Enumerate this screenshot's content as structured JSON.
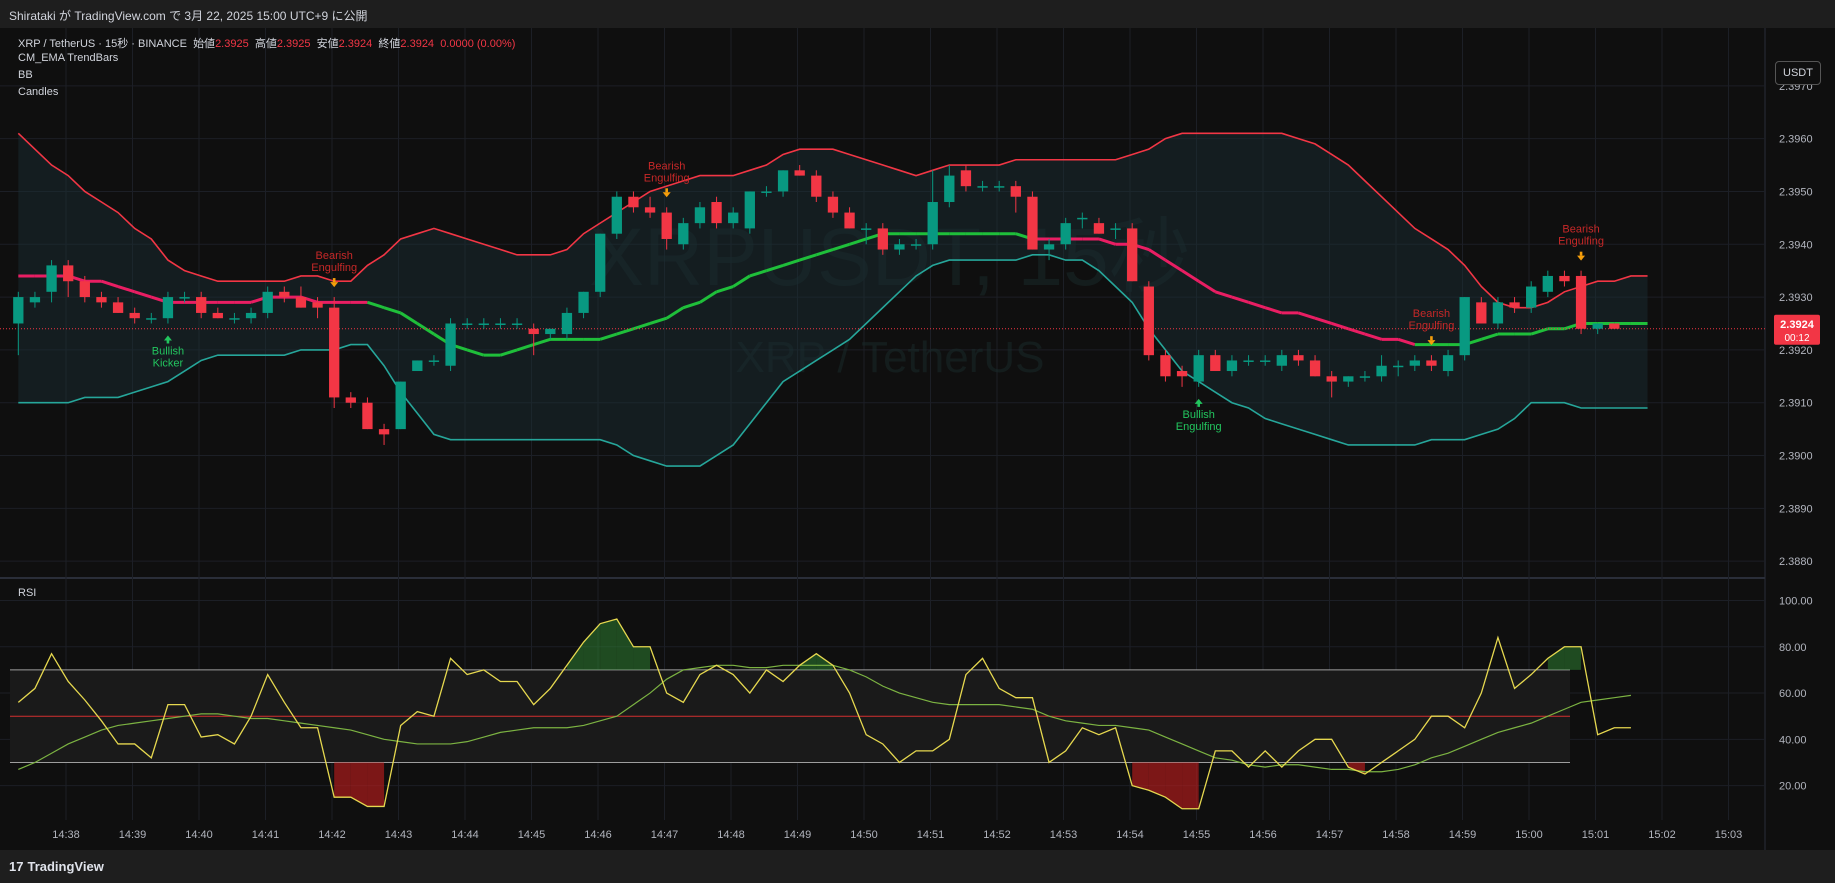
{
  "header": {
    "caption": "Shirataki が TradingView.com で 3月 22, 2025 15:00 UTC+9 に公開"
  },
  "legend": {
    "symbol": "XRP / TetherUS · 15秒 · BINANCE",
    "open_label": "始値",
    "open": "2.3925",
    "high_label": "高値",
    "high": "2.3925",
    "low_label": "安値",
    "low": "2.3924",
    "close_label": "終値",
    "close": "2.3924",
    "change": "0.0000 (0.00%)",
    "indicators": [
      "CM_EMA TrendBars",
      "BB",
      "Candles"
    ]
  },
  "currency_button": "USDT",
  "watermark": {
    "main": "XRPUSDT, 15秒",
    "sub": "XRP / TetherUS"
  },
  "price_badge": {
    "price": "2.3924",
    "countdown": "00:12"
  },
  "rsi_label": "RSI",
  "footer": {
    "brand": "TradingView"
  },
  "colors": {
    "bg": "#0f0f0f",
    "up": "#089981",
    "down": "#f23645",
    "bb_upper": "#f23645",
    "bb_lower": "#26a69a",
    "ema": "#e91e63",
    "rsi": "#e6d84f",
    "rsi_ma": "#7cb342"
  },
  "chart_data": [
    {
      "type": "candlestick",
      "title": "XRP / TetherUS · 15秒 · BINANCE",
      "y_ticks": [
        "2.3880",
        "2.3890",
        "2.3900",
        "2.3910",
        "2.3920",
        "2.3930",
        "2.3940",
        "2.3950",
        "2.3960",
        "2.3970"
      ],
      "ylim": [
        2.3877,
        2.398
      ],
      "x_ticks": [
        "14:38",
        "14:39",
        "14:40",
        "14:41",
        "14:42",
        "14:43",
        "14:44",
        "14:45",
        "14:46",
        "14:47",
        "14:48",
        "14:49",
        "14:50",
        "14:51",
        "14:52",
        "14:53",
        "14:54",
        "14:55",
        "14:56",
        "14:57",
        "14:58",
        "14:59",
        "15:00",
        "15:01",
        "15:02",
        "15:03"
      ],
      "candles": [
        [
          2.3925,
          2.3931,
          2.3919,
          2.393
        ],
        [
          2.3929,
          2.3931,
          2.3928,
          2.393
        ],
        [
          2.3931,
          2.3937,
          2.3929,
          2.3936
        ],
        [
          2.3936,
          2.3937,
          2.393,
          2.3933
        ],
        [
          2.3933,
          2.3934,
          2.3929,
          2.393
        ],
        [
          2.393,
          2.3931,
          2.3928,
          2.3929
        ],
        [
          2.3929,
          2.393,
          2.3927,
          2.3927
        ],
        [
          2.3927,
          2.3928,
          2.3925,
          2.3926
        ],
        [
          2.3926,
          2.3927,
          2.3925,
          2.3926
        ],
        [
          2.3926,
          2.3931,
          2.3925,
          2.393
        ],
        [
          2.393,
          2.3931,
          2.3929,
          2.393
        ],
        [
          2.393,
          2.3931,
          2.3926,
          2.3927
        ],
        [
          2.3927,
          2.3928,
          2.3926,
          2.3926
        ],
        [
          2.3926,
          2.3927,
          2.3925,
          2.3926
        ],
        [
          2.3926,
          2.3928,
          2.3925,
          2.3927
        ],
        [
          2.3927,
          2.3932,
          2.3926,
          2.3931
        ],
        [
          2.3931,
          2.3932,
          2.3929,
          2.393
        ],
        [
          2.393,
          2.3932,
          2.3928,
          2.3928
        ],
        [
          2.3929,
          2.393,
          2.3926,
          2.3928
        ],
        [
          2.3928,
          2.393,
          2.3909,
          2.3911
        ],
        [
          2.3911,
          2.3912,
          2.3909,
          2.391
        ],
        [
          2.391,
          2.3911,
          2.3905,
          2.3905
        ],
        [
          2.3905,
          2.3906,
          2.3902,
          2.3904
        ],
        [
          2.3905,
          2.3914,
          2.3905,
          2.3914
        ],
        [
          2.3916,
          2.3918,
          2.3916,
          2.3918
        ],
        [
          2.3918,
          2.3919,
          2.3917,
          2.3918
        ],
        [
          2.3917,
          2.3926,
          2.3916,
          2.3925
        ],
        [
          2.3925,
          2.3926,
          2.3924,
          2.3925
        ],
        [
          2.3925,
          2.3926,
          2.3924,
          2.3925
        ],
        [
          2.3925,
          2.3926,
          2.3924,
          2.3925
        ],
        [
          2.3925,
          2.3926,
          2.3924,
          2.3925
        ],
        [
          2.3924,
          2.3925,
          2.3919,
          2.3923
        ],
        [
          2.3923,
          2.3924,
          2.3922,
          2.3924
        ],
        [
          2.3923,
          2.3928,
          2.3922,
          2.3927
        ],
        [
          2.3927,
          2.3931,
          2.3926,
          2.3931
        ],
        [
          2.3931,
          2.3942,
          2.393,
          2.3942
        ],
        [
          2.3942,
          2.395,
          2.3941,
          2.3949
        ],
        [
          2.3949,
          2.395,
          2.3946,
          2.3947
        ],
        [
          2.3947,
          2.3949,
          2.3945,
          2.3946
        ],
        [
          2.3946,
          2.3947,
          2.3939,
          2.3941
        ],
        [
          2.394,
          2.3945,
          2.3939,
          2.3944
        ],
        [
          2.3944,
          2.3948,
          2.3943,
          2.3947
        ],
        [
          2.3948,
          2.3949,
          2.3943,
          2.3944
        ],
        [
          2.3944,
          2.3947,
          2.3943,
          2.3946
        ],
        [
          2.3943,
          2.395,
          2.3942,
          2.395
        ],
        [
          2.395,
          2.3951,
          2.3949,
          2.395
        ],
        [
          2.395,
          2.3954,
          2.3949,
          2.3954
        ],
        [
          2.3954,
          2.3955,
          2.3953,
          2.3953
        ],
        [
          2.3953,
          2.3954,
          2.3948,
          2.3949
        ],
        [
          2.3949,
          2.395,
          2.3945,
          2.3946
        ],
        [
          2.3946,
          2.3947,
          2.3943,
          2.3943
        ],
        [
          2.3943,
          2.3944,
          2.394,
          2.3943
        ],
        [
          2.3943,
          2.3944,
          2.3938,
          2.3939
        ],
        [
          2.3939,
          2.3941,
          2.3938,
          2.394
        ],
        [
          2.394,
          2.3941,
          2.3939,
          2.394
        ],
        [
          2.394,
          2.3954,
          2.3939,
          2.3948
        ],
        [
          2.3948,
          2.3955,
          2.3947,
          2.3953
        ],
        [
          2.3954,
          2.3955,
          2.395,
          2.3951
        ],
        [
          2.3951,
          2.3952,
          2.395,
          2.3951
        ],
        [
          2.3951,
          2.3952,
          2.395,
          2.3951
        ],
        [
          2.3951,
          2.3952,
          2.3946,
          2.3949
        ],
        [
          2.3949,
          2.395,
          2.3939,
          2.3939
        ],
        [
          2.3939,
          2.3941,
          2.3937,
          2.394
        ],
        [
          2.394,
          2.3945,
          2.3939,
          2.3944
        ],
        [
          2.3945,
          2.3946,
          2.3943,
          2.3945
        ],
        [
          2.3944,
          2.3945,
          2.3942,
          2.3942
        ],
        [
          2.3943,
          2.3944,
          2.3941,
          2.3943
        ],
        [
          2.3943,
          2.3944,
          2.3933,
          2.3933
        ],
        [
          2.3932,
          2.3933,
          2.3918,
          2.3919
        ],
        [
          2.3919,
          2.392,
          2.3914,
          2.3915
        ],
        [
          2.3916,
          2.3917,
          2.3913,
          2.3915
        ],
        [
          2.3914,
          2.392,
          2.3913,
          2.3919
        ],
        [
          2.3919,
          2.392,
          2.3916,
          2.3916
        ],
        [
          2.3916,
          2.3919,
          2.3915,
          2.3918
        ],
        [
          2.3918,
          2.3919,
          2.3917,
          2.3918
        ],
        [
          2.3918,
          2.3919,
          2.3917,
          2.3918
        ],
        [
          2.3917,
          2.392,
          2.3916,
          2.3919
        ],
        [
          2.3919,
          2.392,
          2.3917,
          2.3918
        ],
        [
          2.3918,
          2.3919,
          2.3915,
          2.3915
        ],
        [
          2.3915,
          2.3916,
          2.3911,
          2.3914
        ],
        [
          2.3914,
          2.3915,
          2.3913,
          2.3915
        ],
        [
          2.3915,
          2.3916,
          2.3914,
          2.3915
        ],
        [
          2.3915,
          2.3919,
          2.3914,
          2.3917
        ],
        [
          2.3917,
          2.3918,
          2.3915,
          2.3917
        ],
        [
          2.3917,
          2.3919,
          2.3916,
          2.3918
        ],
        [
          2.3918,
          2.3919,
          2.3916,
          2.3917
        ],
        [
          2.3916,
          2.392,
          2.3915,
          2.3919
        ],
        [
          2.3919,
          2.393,
          2.3918,
          2.393
        ],
        [
          2.3929,
          2.393,
          2.3925,
          2.3925
        ],
        [
          2.3925,
          2.393,
          2.3924,
          2.3929
        ],
        [
          2.3929,
          2.393,
          2.3927,
          2.3928
        ],
        [
          2.3928,
          2.3933,
          2.3927,
          2.3932
        ],
        [
          2.3931,
          2.3935,
          2.393,
          2.3934
        ],
        [
          2.3934,
          2.3935,
          2.3932,
          2.3933
        ],
        [
          2.3934,
          2.3935,
          2.3923,
          2.3924
        ],
        [
          2.3924,
          2.3925,
          2.3923,
          2.3925
        ],
        [
          2.3925,
          2.3925,
          2.3924,
          2.3924
        ]
      ],
      "bb_upper": [
        2.3961,
        2.3958,
        2.3955,
        2.3953,
        2.395,
        2.3948,
        2.3946,
        2.3943,
        2.3941,
        2.3937,
        2.3935,
        2.3934,
        2.3933,
        2.3933,
        2.3933,
        2.3933,
        2.3933,
        2.3934,
        2.3934,
        2.3933,
        2.3933,
        2.3936,
        2.3938,
        2.3941,
        2.3942,
        2.3943,
        2.3942,
        2.3941,
        2.394,
        2.3939,
        2.3938,
        2.3938,
        2.3938,
        2.3939,
        2.3942,
        2.3944,
        2.3946,
        2.3948,
        2.395,
        2.3951,
        2.3952,
        2.3953,
        2.3953,
        2.3953,
        2.3954,
        2.3955,
        2.3957,
        2.3958,
        2.3958,
        2.3958,
        2.3957,
        2.3956,
        2.3955,
        2.3954,
        2.3953,
        2.3954,
        2.3955,
        2.3955,
        2.3955,
        2.3955,
        2.3956,
        2.3956,
        2.3956,
        2.3956,
        2.3956,
        2.3956,
        2.3956,
        2.3957,
        2.3958,
        2.396,
        2.3961,
        2.3961,
        2.3961,
        2.3961,
        2.3961,
        2.3961,
        2.3961,
        2.396,
        2.3959,
        2.3957,
        2.3955,
        2.3952,
        2.3949,
        2.3946,
        2.3943,
        2.3941,
        2.3939,
        2.3936,
        2.3932,
        2.3929,
        2.3928,
        2.3928,
        2.3929,
        2.3931,
        2.3932,
        2.3933,
        2.3933,
        2.3934,
        2.3934
      ],
      "bb_lower": [
        2.391,
        2.391,
        2.391,
        2.391,
        2.3911,
        2.3911,
        2.3911,
        2.3912,
        2.3913,
        2.3914,
        2.3916,
        2.3918,
        2.3919,
        2.3919,
        2.3919,
        2.3919,
        2.3919,
        2.392,
        2.392,
        2.392,
        2.3921,
        2.3921,
        2.3917,
        2.3912,
        2.3908,
        2.3904,
        2.3903,
        2.3903,
        2.3903,
        2.3903,
        2.3903,
        2.3903,
        2.3903,
        2.3903,
        2.3903,
        2.3903,
        2.3902,
        2.39,
        2.3899,
        2.3898,
        2.3898,
        2.3898,
        2.39,
        2.3902,
        2.3906,
        2.391,
        2.3914,
        2.3916,
        2.3918,
        2.392,
        2.3922,
        2.3925,
        2.3928,
        2.3931,
        2.3934,
        2.3936,
        2.3937,
        2.3937,
        2.3937,
        2.3937,
        2.3937,
        2.3938,
        2.3938,
        2.3937,
        2.3937,
        2.3935,
        2.3932,
        2.3929,
        2.3924,
        2.392,
        2.3916,
        2.3914,
        2.3912,
        2.391,
        2.3909,
        2.3907,
        2.3906,
        2.3905,
        2.3904,
        2.3903,
        2.3902,
        2.3902,
        2.3902,
        2.3902,
        2.3902,
        2.3903,
        2.3903,
        2.3903,
        2.3904,
        2.3905,
        2.3907,
        2.391,
        2.391,
        2.391,
        2.3909,
        2.3909,
        2.3909,
        2.3909,
        2.3909
      ],
      "bb_basis": [
        2.3934,
        2.3934,
        2.3934,
        2.3934,
        2.3933,
        2.3933,
        2.3932,
        2.3931,
        2.393,
        2.3929,
        2.3929,
        2.3929,
        2.3929,
        2.3929,
        2.3929,
        2.393,
        2.393,
        2.393,
        2.3929,
        2.3929,
        2.3929,
        2.3929,
        2.3928,
        2.3927,
        2.3925,
        2.3923,
        2.3921,
        2.392,
        2.3919,
        2.3919,
        2.392,
        2.3921,
        2.3922,
        2.3922,
        2.3922,
        2.3922,
        2.3923,
        2.3924,
        2.3925,
        2.3926,
        2.3928,
        2.3929,
        2.3931,
        2.3932,
        2.3934,
        2.3935,
        2.3936,
        2.3937,
        2.3938,
        2.3939,
        2.394,
        2.3941,
        2.3942,
        2.3942,
        2.3942,
        2.3942,
        2.3942,
        2.3942,
        2.3942,
        2.3942,
        2.3942,
        2.3941,
        2.3941,
        2.3941,
        2.3941,
        2.3941,
        2.394,
        2.394,
        2.3939,
        2.3937,
        2.3935,
        2.3933,
        2.3931,
        2.393,
        2.3929,
        2.3928,
        2.3927,
        2.3927,
        2.3926,
        2.3925,
        2.3924,
        2.3923,
        2.3922,
        2.3922,
        2.3921,
        2.3921,
        2.3921,
        2.3921,
        2.3922,
        2.3923,
        2.3923,
        2.3923,
        2.3924,
        2.3924,
        2.3925,
        2.3925,
        2.3925,
        2.3925,
        2.3925
      ],
      "annotations": [
        {
          "text": [
            "Bullish",
            "Kicker"
          ],
          "index": 9,
          "type": "bullish"
        },
        {
          "text": [
            "Bearish",
            "Engulfing"
          ],
          "index": 19,
          "type": "bearish"
        },
        {
          "text": [
            "Bearish",
            "Engulfing"
          ],
          "index": 39,
          "type": "bearish"
        },
        {
          "text": [
            "Bullish",
            "Engulfing"
          ],
          "index": 71,
          "type": "bullish"
        },
        {
          "text": [
            "Bearish",
            "Engulfing"
          ],
          "index": 85,
          "type": "bearish"
        },
        {
          "text": [
            "Bearish",
            "Engulfing"
          ],
          "index": 94,
          "type": "bearish"
        }
      ],
      "current_price": 2.3924
    },
    {
      "type": "line",
      "title": "RSI",
      "y_ticks": [
        "20.00",
        "40.00",
        "60.00",
        "80.00",
        "100.00"
      ],
      "ylim": [
        6,
        108
      ],
      "levels": [
        70,
        50,
        30
      ],
      "series": [
        {
          "values": [
            56,
            62,
            77,
            65,
            57,
            48,
            38,
            38,
            32,
            55,
            55,
            41,
            42,
            38,
            50,
            68,
            56,
            45,
            45,
            15,
            15,
            11,
            11,
            46,
            52,
            50,
            75,
            68,
            70,
            65,
            65,
            55,
            62,
            72,
            82,
            90,
            92,
            80,
            80,
            60,
            56,
            68,
            72,
            68,
            60,
            70,
            65,
            72,
            77,
            72,
            60,
            42,
            38,
            30,
            35,
            35,
            40,
            68,
            75,
            62,
            58,
            58,
            30,
            35,
            45,
            42,
            45,
            20,
            18,
            15,
            10,
            10,
            35,
            35,
            28,
            35,
            28,
            35,
            40,
            40,
            28,
            25,
            30,
            35,
            40,
            50,
            50,
            45,
            60,
            84,
            62,
            68,
            75,
            80,
            80,
            42,
            45,
            45
          ]
        },
        {
          "values": [
            27,
            30,
            34,
            38,
            41,
            44,
            46,
            47,
            48,
            49,
            50,
            51,
            51,
            50,
            49,
            49,
            48,
            47,
            46,
            45,
            44,
            42,
            40,
            39,
            38,
            38,
            38,
            39,
            41,
            43,
            44,
            45,
            45,
            45,
            46,
            48,
            50,
            55,
            60,
            66,
            70,
            71,
            72,
            72,
            71,
            71,
            72,
            72,
            72,
            72,
            70,
            67,
            63,
            60,
            58,
            56,
            55,
            55,
            55,
            55,
            54,
            53,
            50,
            48,
            47,
            46,
            46,
            45,
            44,
            41,
            38,
            35,
            32,
            31,
            29,
            28,
            29,
            29,
            28,
            27,
            27,
            26,
            26,
            27,
            29,
            32,
            34,
            37,
            40,
            43,
            45,
            47,
            50,
            53,
            56,
            57,
            58,
            59
          ]
        }
      ]
    }
  ]
}
